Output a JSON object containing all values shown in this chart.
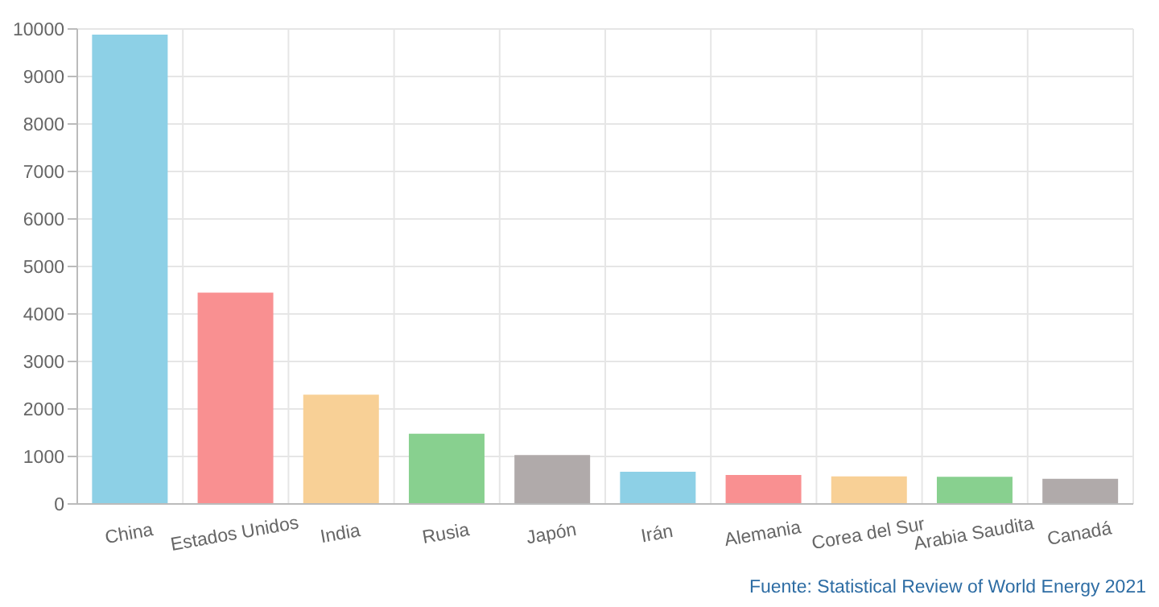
{
  "chart_data": {
    "type": "bar",
    "categories": [
      "China",
      "Estados Unidos",
      "India",
      "Rusia",
      "Japón",
      "Irán",
      "Alemania",
      "Corea del Sur",
      "Arabia Saudita",
      "Canadá"
    ],
    "values": [
      9880,
      4450,
      2300,
      1480,
      1030,
      680,
      610,
      580,
      570,
      530
    ],
    "colors": [
      "#8dd0e6",
      "#f99091",
      "#f8d096",
      "#88d08f",
      "#b0aaaa",
      "#8dd0e6",
      "#f99091",
      "#f8d096",
      "#88d08f",
      "#b0aaaa"
    ],
    "ylim": [
      0,
      10000
    ],
    "yticks": [
      0,
      1000,
      2000,
      3000,
      4000,
      5000,
      6000,
      7000,
      8000,
      9000,
      10000
    ],
    "grid": true,
    "annotations": [
      "Fuente: Statistical Review of World Energy 2021"
    ]
  }
}
